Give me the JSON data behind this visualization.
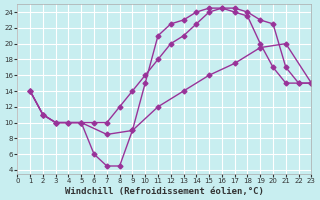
{
  "background_color": "#c8eef0",
  "grid_color": "#ffffff",
  "line_color": "#993399",
  "marker": "D",
  "markersize": 2.5,
  "linewidth": 1.0,
  "xlabel": "Windchill (Refroidissement éolien,°C)",
  "xlabel_fontsize": 6.5,
  "xticks": [
    0,
    1,
    2,
    3,
    4,
    5,
    6,
    7,
    8,
    9,
    10,
    11,
    12,
    13,
    14,
    15,
    16,
    17,
    18,
    19,
    20,
    21,
    22,
    23
  ],
  "yticks": [
    4,
    6,
    8,
    10,
    12,
    14,
    16,
    18,
    20,
    22,
    24
  ],
  "xlim": [
    0,
    23
  ],
  "ylim": [
    3.5,
    25.0
  ],
  "line1_x": [
    1,
    2,
    3,
    4,
    5,
    6,
    7,
    8,
    9,
    10,
    11,
    12,
    13,
    14,
    15,
    16,
    17,
    18,
    19,
    20,
    21,
    22,
    23
  ],
  "line1_y": [
    14,
    11,
    10,
    10,
    10,
    10,
    10,
    12,
    14,
    16,
    18,
    20,
    21,
    22.5,
    24,
    24.5,
    24.5,
    24,
    23,
    22.5,
    17,
    15,
    15
  ],
  "line2_x": [
    1,
    2,
    3,
    4,
    5,
    6,
    7,
    8,
    9,
    10,
    11,
    12,
    13,
    14,
    15,
    16,
    17,
    18,
    19,
    20,
    21,
    22,
    23
  ],
  "line2_y": [
    14,
    11,
    10,
    10,
    10,
    6,
    4.5,
    4.5,
    9,
    15,
    21,
    22.5,
    23,
    24,
    24.5,
    24.5,
    24,
    23.5,
    20,
    17,
    15,
    15,
    15
  ],
  "line3_x": [
    1,
    2,
    3,
    5,
    7,
    9,
    11,
    13,
    15,
    17,
    19,
    21,
    23
  ],
  "line3_y": [
    14,
    11,
    10,
    10,
    8.5,
    9,
    12,
    14,
    16,
    17.5,
    19.5,
    20,
    15
  ]
}
